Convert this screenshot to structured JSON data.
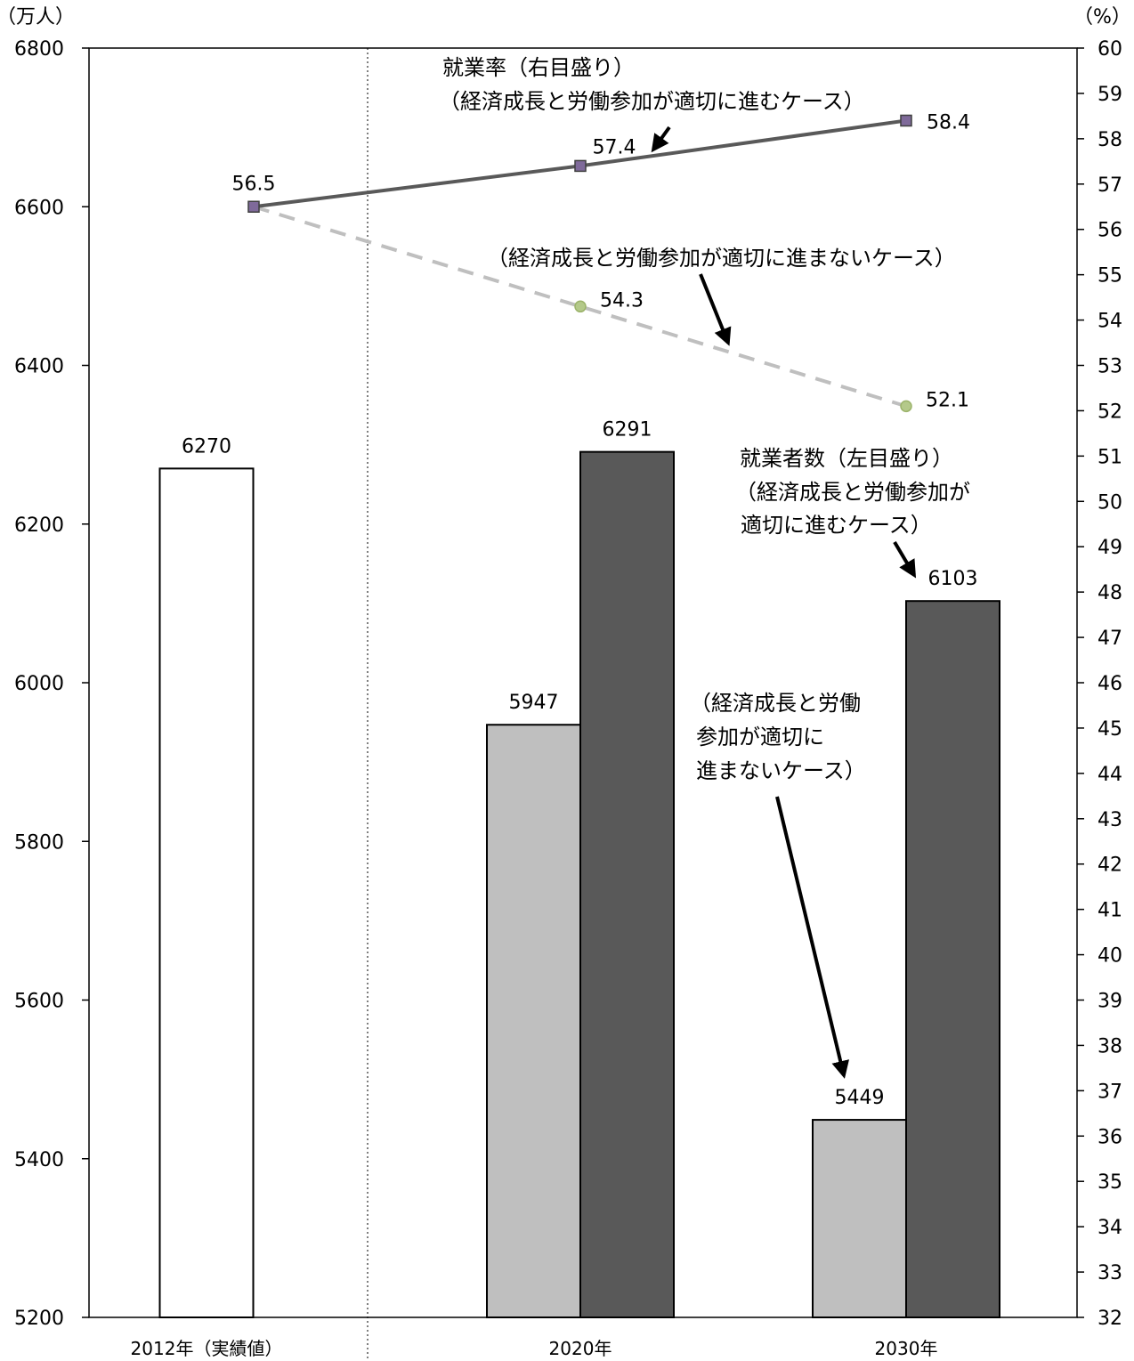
{
  "chart_data": {
    "type": "bar",
    "left_unit": "（万人）",
    "right_unit": "（%）",
    "categories": [
      "2012年（実績値）",
      "2020年",
      "2030年"
    ],
    "left_axis": {
      "min": 5200,
      "max": 6800,
      "ticks": [
        5200,
        5400,
        5600,
        5800,
        6000,
        6200,
        6400,
        6600,
        6800
      ]
    },
    "right_axis": {
      "min": 32,
      "max": 60,
      "ticks": [
        32,
        33,
        34,
        35,
        36,
        37,
        38,
        39,
        40,
        41,
        42,
        43,
        44,
        45,
        46,
        47,
        48,
        49,
        50,
        51,
        52,
        53,
        54,
        55,
        56,
        57,
        58,
        59,
        60
      ]
    },
    "bars": {
      "actual": {
        "values": [
          6270,
          null,
          null
        ],
        "labels": [
          "6270",
          "",
          ""
        ],
        "color": "#ffffff"
      },
      "not_appropriate": {
        "values": [
          null,
          5947,
          5449
        ],
        "labels": [
          "",
          "5947",
          "5449"
        ],
        "color": "#bfbfbf"
      },
      "appropriate": {
        "values": [
          null,
          6291,
          6103
        ],
        "labels": [
          "",
          "6291",
          "6103"
        ],
        "color": "#595959"
      }
    },
    "lines": {
      "appropriate": {
        "values": [
          56.5,
          57.4,
          58.4
        ],
        "labels": [
          "56.5",
          "57.4",
          "58.4"
        ],
        "color": "#595959",
        "style": "solid",
        "marker": "square",
        "marker_color": "#7f6a9a"
      },
      "not_appropriate": {
        "values": [
          null,
          54.3,
          52.1
        ],
        "labels": [
          "",
          "54.3",
          "52.1"
        ],
        "color": "#bfbfbf",
        "style": "dashed",
        "marker": "circle",
        "marker_color": "#b4c98a"
      }
    },
    "annotations": {
      "rate_title": "就業率（右目盛り）",
      "rate_appropriate": "（経済成長と労働参加が適切に進むケース）",
      "rate_not_appropriate": "（経済成長と労働参加が適切に進まないケース）",
      "emp_title": "就業者数（左目盛り）",
      "emp_appropriate_1": "（経済成長と労働参加が",
      "emp_appropriate_2": "適切に進むケース）",
      "emp_not_1": "（経済成長と労働",
      "emp_not_2": "参加が適切に",
      "emp_not_3": "進まないケース）"
    }
  }
}
